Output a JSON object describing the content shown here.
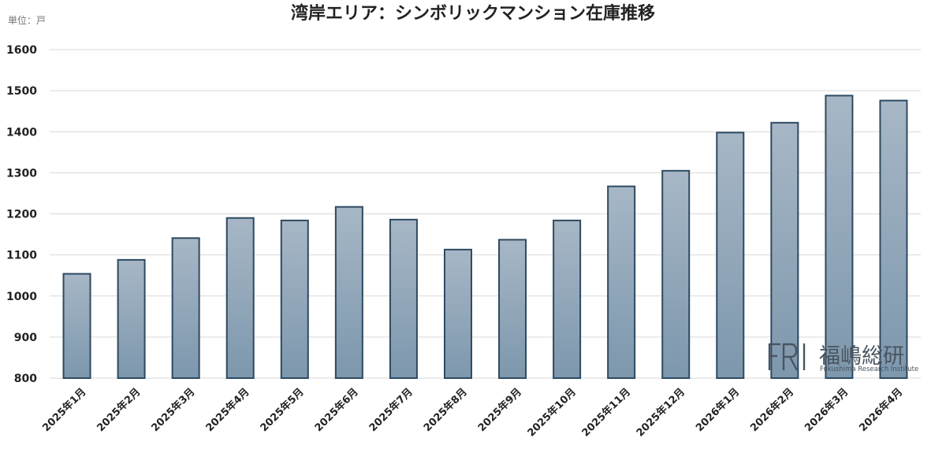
{
  "chart_data": {
    "type": "bar",
    "title": "湾岸エリア：シンボリックマンション在庫推移",
    "unit_label": "単位：戸",
    "categories": [
      "2025年1月",
      "2025年2月",
      "2025年3月",
      "2025年4月",
      "2025年5月",
      "2025年6月",
      "2025年7月",
      "2025年8月",
      "2025年9月",
      "2025年10月",
      "2025年11月",
      "2025年12月",
      "2026年1月",
      "2026年2月",
      "2026年3月",
      "2026年4月"
    ],
    "values": [
      1054,
      1088,
      1141,
      1190,
      1184,
      1217,
      1186,
      1113,
      1137,
      1184,
      1267,
      1305,
      1398,
      1422,
      1488,
      1476
    ],
    "yticks": [
      800,
      900,
      1000,
      1100,
      1200,
      1300,
      1400,
      1500,
      1600
    ],
    "ylim": [
      800,
      1600
    ],
    "grid": true,
    "bar_color_top": "#a7b7c6",
    "bar_color_bottom": "#7d97ad",
    "bar_edge_color": "#2e4a60"
  },
  "logo": {
    "mark": "FRI",
    "name": "福嶋総研",
    "subtitle": "Fukushima Research Institute"
  }
}
